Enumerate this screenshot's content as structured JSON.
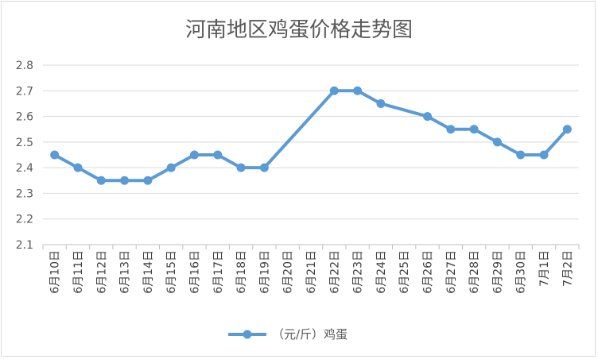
{
  "chart_data": {
    "type": "line",
    "title": "河南地区鸡蛋价格走势图",
    "categories": [
      "6月10日",
      "6月11日",
      "6月12日",
      "6月13日",
      "6月14日",
      "6月15日",
      "6月16日",
      "6月17日",
      "6月18日",
      "6月19日",
      "6月20日",
      "6月21日",
      "6月22日",
      "6月23日",
      "6月24日",
      "6月25日",
      "6月26日",
      "6月27日",
      "6月28日",
      "6月29日",
      "6月30日",
      "7月1日",
      "7月2日"
    ],
    "series": [
      {
        "name": "（元/斤）鸡蛋",
        "values": [
          2.45,
          2.4,
          2.35,
          2.35,
          2.35,
          2.4,
          2.45,
          2.45,
          2.4,
          2.4,
          null,
          null,
          2.7,
          2.7,
          2.65,
          null,
          2.6,
          2.55,
          2.55,
          2.5,
          2.45,
          2.45,
          2.55
        ],
        "color": "#5b9bd5"
      }
    ],
    "yticks": [
      "2.1",
      "2.2",
      "2.3",
      "2.4",
      "2.5",
      "2.6",
      "2.7",
      "2.8"
    ],
    "ylim": [
      2.1,
      2.8
    ],
    "grid": true,
    "legend_position": "bottom"
  }
}
